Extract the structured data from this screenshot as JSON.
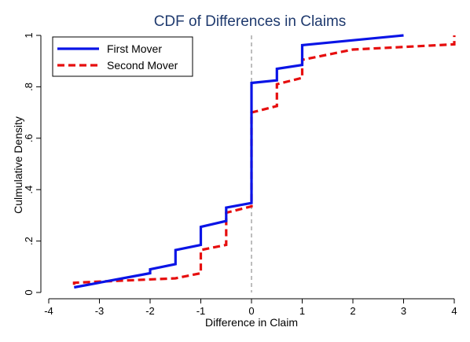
{
  "chart_data": {
    "type": "line",
    "title": "CDF of Differences in Claims",
    "xlabel": "Difference in Claim",
    "ylabel": "Culmulative Density",
    "xlim": [
      -4,
      4
    ],
    "ylim": [
      0,
      1
    ],
    "xticks": [
      -4,
      -3,
      -2,
      -1,
      0,
      1,
      2,
      3,
      4
    ],
    "xtick_labels": [
      "-4",
      "-3",
      "-2",
      "-1",
      "0",
      "1",
      "2",
      "3",
      "4"
    ],
    "yticks": [
      0,
      0.2,
      0.4,
      0.6,
      0.8,
      1
    ],
    "ytick_labels": [
      "0",
      ".2",
      ".4",
      ".6",
      ".8",
      "1"
    ],
    "reference_line": {
      "x": 0,
      "style": "dashed",
      "color": "#9a9a9a"
    },
    "legend_position": "top-left",
    "series": [
      {
        "name": "First Mover",
        "color": "#0a14e6",
        "style": "solid",
        "points": [
          [
            -3.5,
            0.02
          ],
          [
            -2.0,
            0.075
          ],
          [
            -2.0,
            0.09
          ],
          [
            -1.5,
            0.11
          ],
          [
            -1.5,
            0.165
          ],
          [
            -1.0,
            0.185
          ],
          [
            -1.0,
            0.255
          ],
          [
            -0.5,
            0.278
          ],
          [
            -0.5,
            0.33
          ],
          [
            0.0,
            0.348
          ],
          [
            0.0,
            0.815
          ],
          [
            0.5,
            0.825
          ],
          [
            0.5,
            0.87
          ],
          [
            1.0,
            0.885
          ],
          [
            1.0,
            0.962
          ],
          [
            3.0,
            1.0
          ]
        ]
      },
      {
        "name": "Second Mover",
        "color": "#e60e0e",
        "style": "dashed",
        "points": [
          [
            -3.5,
            0.03
          ],
          [
            -3.5,
            0.038
          ],
          [
            -1.5,
            0.055
          ],
          [
            -1.0,
            0.075
          ],
          [
            -1.0,
            0.165
          ],
          [
            -0.5,
            0.185
          ],
          [
            -0.5,
            0.31
          ],
          [
            0.0,
            0.335
          ],
          [
            0.0,
            0.7
          ],
          [
            0.5,
            0.725
          ],
          [
            0.5,
            0.81
          ],
          [
            1.0,
            0.835
          ],
          [
            1.0,
            0.905
          ],
          [
            2.0,
            0.945
          ],
          [
            4.0,
            0.965
          ],
          [
            4.0,
            1.0
          ]
        ]
      }
    ]
  }
}
